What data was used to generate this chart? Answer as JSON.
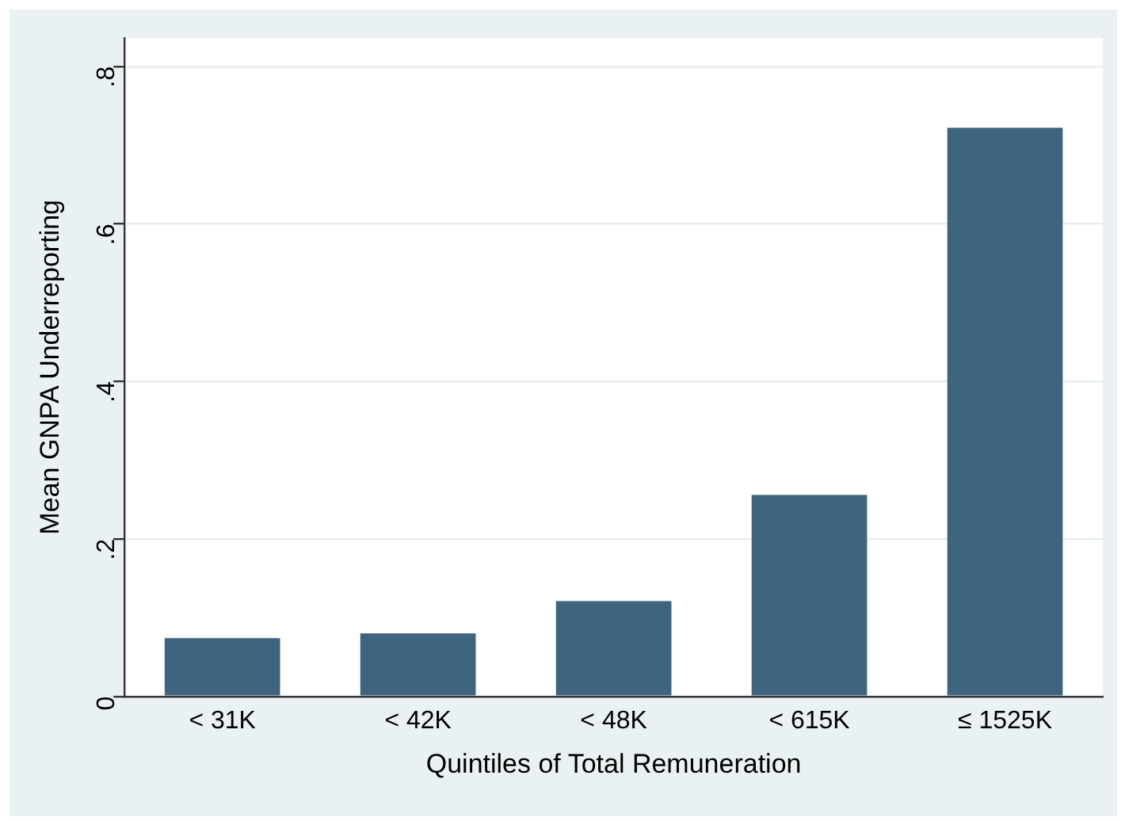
{
  "chart_data": {
    "type": "bar",
    "xlabel": "Quintiles of Total Remuneration",
    "ylabel": "Mean GNPA Underreporting",
    "categories": [
      "< 31K",
      "< 42K",
      "< 48K",
      "< 615K",
      "≤ 1525K"
    ],
    "values": [
      0.074,
      0.08,
      0.121,
      0.256,
      0.722
    ],
    "color": "#3e6480",
    "ylim": [
      0,
      0.836
    ],
    "yticks": [
      0,
      {
        "value": 0.2,
        "label": ".2"
      },
      {
        "value": 0.4,
        "label": ".4"
      },
      {
        "value": 0.6,
        "label": ".6"
      },
      {
        "value": 0.8,
        "label": ".8"
      }
    ],
    "grid": "y",
    "legend": false
  }
}
